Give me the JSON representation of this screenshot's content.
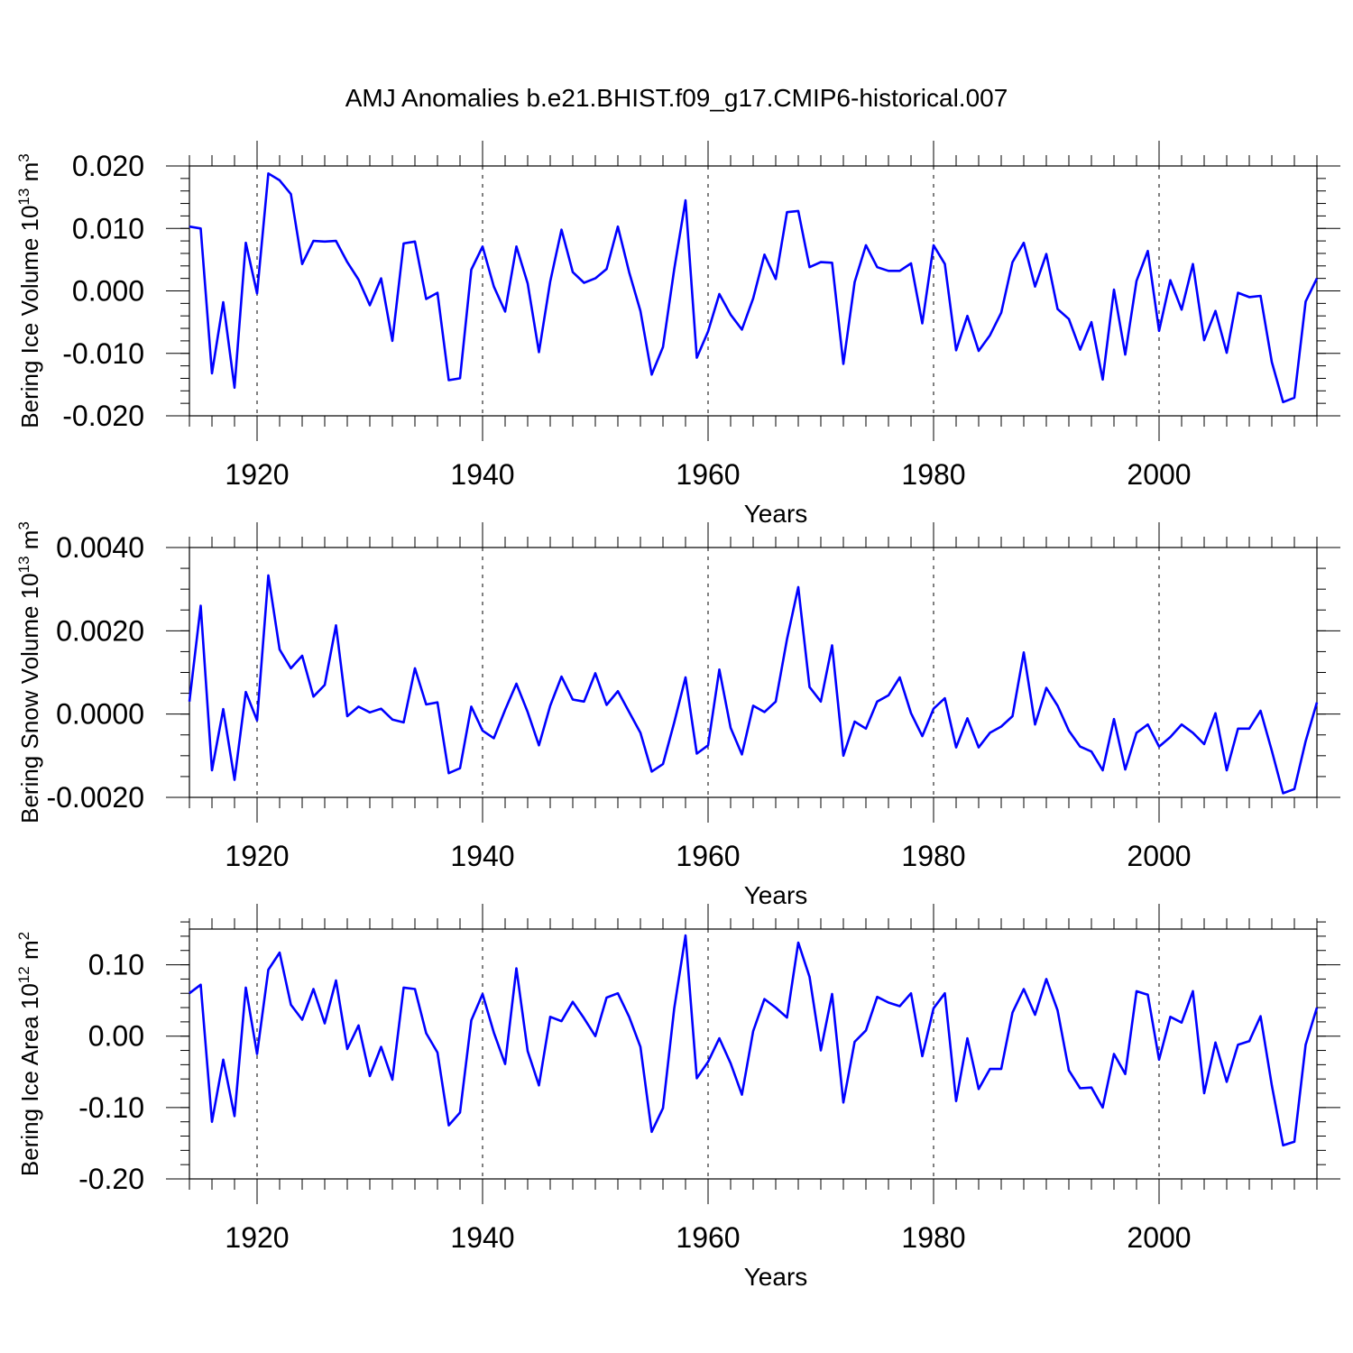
{
  "title": "AMJ Anomalies b.e21.BHIST.f09_g17.CMIP6-historical.007",
  "chart_data": [
    {
      "type": "line",
      "ylabel": "Bering Ice Volume 10",
      "ylabel_exp": "13",
      "ylabel_unit": " m",
      "ylabel_unit_exp": "3",
      "xlabel": "Years",
      "xlim": [
        1914,
        2014
      ],
      "ylim": [
        -0.02,
        0.02
      ],
      "yticks": [
        -0.02,
        -0.01,
        0.0,
        0.01,
        0.02
      ],
      "ytick_labels": [
        "-0.020",
        "-0.010",
        "0.000",
        "0.010",
        "0.020"
      ],
      "yminor": 0.002,
      "xticks": [
        1920,
        1940,
        1960,
        1980,
        2000
      ],
      "xtick_labels": [
        "1920",
        "1940",
        "1960",
        "1980",
        "2000"
      ],
      "grid_x": true,
      "color": "#0000ff",
      "x_start": 1914,
      "values": [
        0.0103,
        0.01,
        -0.0132,
        -0.0018,
        -0.0155,
        0.0077,
        -0.0004,
        0.0188,
        0.0177,
        0.0155,
        0.0043,
        0.008,
        0.0079,
        0.008,
        0.0046,
        0.0018,
        -0.0023,
        0.002,
        -0.008,
        0.0076,
        0.0079,
        -0.0013,
        -0.0003,
        -0.0143,
        -0.014,
        0.0034,
        0.0071,
        0.0007,
        -0.0033,
        0.0071,
        0.0012,
        -0.0098,
        0.0015,
        0.0098,
        0.003,
        0.0013,
        0.002,
        0.0035,
        0.0103,
        0.003,
        -0.0032,
        -0.0134,
        -0.009,
        0.0035,
        0.0145,
        -0.0107,
        -0.0065,
        -0.0005,
        -0.0038,
        -0.0062,
        -0.0012,
        0.0058,
        0.0019,
        0.0126,
        0.0128,
        0.0038,
        0.0046,
        0.0045,
        -0.0117,
        0.0014,
        0.0073,
        0.0038,
        0.0032,
        0.0032,
        0.0044,
        -0.0052,
        0.0073,
        0.0043,
        -0.0095,
        -0.004,
        -0.0096,
        -0.0071,
        -0.0035,
        0.0046,
        0.0077,
        0.0007,
        0.0059,
        -0.0029,
        -0.0045,
        -0.0094,
        -0.005,
        -0.0142,
        0.0002,
        -0.0102,
        0.0016,
        0.0064,
        -0.0064,
        0.0017,
        -0.003,
        0.0043,
        -0.0079,
        -0.0032,
        -0.0099,
        -0.0003,
        -0.001,
        -0.0008,
        -0.0114,
        -0.0178,
        -0.0171,
        -0.0017,
        0.002
      ]
    },
    {
      "type": "line",
      "ylabel": "Bering Snow Volume 10",
      "ylabel_exp": "13",
      "ylabel_unit": " m",
      "ylabel_unit_exp": "3",
      "xlabel": "Years",
      "xlim": [
        1914,
        2014
      ],
      "ylim": [
        -0.002,
        0.004
      ],
      "yticks": [
        -0.002,
        0.0,
        0.002,
        0.004
      ],
      "ytick_labels": [
        "-0.0020",
        "0.0000",
        "0.0020",
        "0.0040"
      ],
      "yminor": 0.0005,
      "xticks": [
        1920,
        1940,
        1960,
        1980,
        2000
      ],
      "xtick_labels": [
        "1920",
        "1940",
        "1960",
        "1980",
        "2000"
      ],
      "grid_x": true,
      "color": "#0000ff",
      "x_start": 1914,
      "values": [
        0.0003,
        0.0026,
        -0.00135,
        0.00012,
        -0.00158,
        0.00053,
        -0.00015,
        0.00333,
        0.00155,
        0.0011,
        0.0014,
        0.00042,
        0.0007,
        0.00213,
        -5e-05,
        0.00018,
        4e-05,
        0.00013,
        -0.00013,
        -0.0002,
        0.0011,
        0.00023,
        0.00028,
        -0.00142,
        -0.0013,
        0.00018,
        -0.0004,
        -0.00058,
        0.0001,
        0.00073,
        5e-05,
        -0.00075,
        0.0002,
        0.0009,
        0.00035,
        0.0003,
        0.00098,
        0.00022,
        0.00055,
        5e-05,
        -0.00045,
        -0.00138,
        -0.0012,
        -0.0002,
        0.00088,
        -0.00095,
        -0.00075,
        0.00107,
        -0.00033,
        -0.00097,
        0.0002,
        5e-05,
        0.0003,
        0.0018,
        0.00305,
        0.00065,
        0.0003,
        0.00165,
        -0.001,
        -0.00018,
        -0.00035,
        0.0003,
        0.00045,
        0.00088,
        2e-05,
        -0.00053,
        0.00013,
        0.00038,
        -0.0008,
        -0.0001,
        -0.0008,
        -0.00045,
        -0.0003,
        -5e-05,
        0.00148,
        -0.00025,
        0.00063,
        0.0002,
        -0.0004,
        -0.00078,
        -0.0009,
        -0.00135,
        -0.00012,
        -0.00133,
        -0.00045,
        -0.00025,
        -0.00078,
        -0.00055,
        -0.00025,
        -0.00045,
        -0.00072,
        2e-05,
        -0.00135,
        -0.00035,
        -0.00035,
        8e-05,
        -0.00088,
        -0.0019,
        -0.0018,
        -0.00065,
        0.00028
      ]
    },
    {
      "type": "line",
      "ylabel": "Bering Ice Area 10",
      "ylabel_exp": "12",
      "ylabel_unit": " m",
      "ylabel_unit_exp": "2",
      "xlabel": "Years",
      "xlim": [
        1914,
        2014
      ],
      "ylim": [
        -0.2,
        0.15
      ],
      "yticks": [
        -0.2,
        -0.1,
        0.0,
        0.1
      ],
      "ytick_labels": [
        "-0.20",
        "-0.10",
        "0.00",
        "0.10"
      ],
      "yminor": 0.02,
      "xticks": [
        1920,
        1940,
        1960,
        1980,
        2000
      ],
      "xtick_labels": [
        "1920",
        "1940",
        "1960",
        "1980",
        "2000"
      ],
      "grid_x": true,
      "color": "#0000ff",
      "x_start": 1914,
      "values": [
        0.06,
        0.072,
        -0.12,
        -0.033,
        -0.112,
        0.068,
        -0.025,
        0.093,
        0.117,
        0.044,
        0.023,
        0.066,
        0.018,
        0.078,
        -0.018,
        0.015,
        -0.056,
        -0.015,
        -0.061,
        0.068,
        0.066,
        0.004,
        -0.023,
        -0.125,
        -0.107,
        0.022,
        0.059,
        0.005,
        -0.039,
        0.095,
        -0.021,
        -0.069,
        0.027,
        0.021,
        0.048,
        0.025,
        0.0,
        0.054,
        0.06,
        0.027,
        -0.015,
        -0.134,
        -0.101,
        0.039,
        0.141,
        -0.059,
        -0.036,
        -0.003,
        -0.038,
        -0.082,
        0.007,
        0.052,
        0.04,
        0.026,
        0.131,
        0.083,
        -0.02,
        0.059,
        -0.093,
        -0.008,
        0.008,
        0.055,
        0.047,
        0.042,
        0.06,
        -0.028,
        0.039,
        0.06,
        -0.091,
        -0.003,
        -0.074,
        -0.046,
        -0.046,
        0.033,
        0.066,
        0.03,
        0.08,
        0.036,
        -0.048,
        -0.073,
        -0.072,
        -0.1,
        -0.025,
        -0.053,
        0.063,
        0.058,
        -0.033,
        0.027,
        0.019,
        0.063,
        -0.08,
        -0.009,
        -0.064,
        -0.012,
        -0.007,
        0.028,
        -0.069,
        -0.153,
        -0.148,
        -0.012,
        0.04
      ]
    }
  ]
}
